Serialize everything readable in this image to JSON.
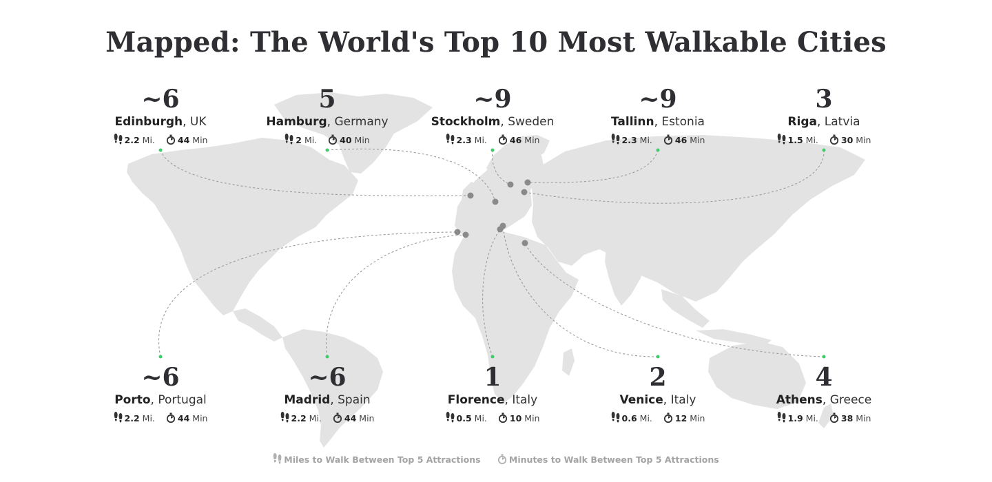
{
  "title": "Mapped: The World's Top 10 Most Walkable Cities",
  "legend": {
    "miles_label": "Miles to Walk Between Top 5 Attractions",
    "minutes_label": "Minutes to Walk Between Top 5 Attractions",
    "miles_icon": "footprints-icon",
    "minutes_icon": "stopwatch-icon"
  },
  "colors": {
    "land": "#e3e3e3",
    "dot": "#8a8a8a",
    "anchor": "#3ecf6a",
    "line": "#9a9a9a"
  },
  "cities": [
    {
      "rank": "~6",
      "name": "Edinburgh",
      "country": "UK",
      "miles": "2.2",
      "miles_unit": "Mi.",
      "minutes": "44",
      "minutes_unit": "Min"
    },
    {
      "rank": "5",
      "name": "Hamburg",
      "country": "Germany",
      "miles": "2",
      "miles_unit": "Mi.",
      "minutes": "40",
      "minutes_unit": "Min"
    },
    {
      "rank": "~9",
      "name": "Stockholm",
      "country": "Sweden",
      "miles": "2.3",
      "miles_unit": "Mi.",
      "minutes": "46",
      "minutes_unit": "Min"
    },
    {
      "rank": "~9",
      "name": "Tallinn",
      "country": "Estonia",
      "miles": "2.3",
      "miles_unit": "Mi.",
      "minutes": "46",
      "minutes_unit": "Min"
    },
    {
      "rank": "3",
      "name": "Riga",
      "country": "Latvia",
      "miles": "1.5",
      "miles_unit": "Mi.",
      "minutes": "30",
      "minutes_unit": "Min"
    },
    {
      "rank": "~6",
      "name": "Porto",
      "country": "Portugal",
      "miles": "2.2",
      "miles_unit": "Mi.",
      "minutes": "44",
      "minutes_unit": "Min"
    },
    {
      "rank": "~6",
      "name": "Madrid",
      "country": "Spain",
      "miles": "2.2",
      "miles_unit": "Mi.",
      "minutes": "44",
      "minutes_unit": "Min"
    },
    {
      "rank": "1",
      "name": "Florence",
      "country": "Italy",
      "miles": "0.5",
      "miles_unit": "Mi.",
      "minutes": "10",
      "minutes_unit": "Min"
    },
    {
      "rank": "2",
      "name": "Venice",
      "country": "Italy",
      "miles": "0.6",
      "miles_unit": "Mi.",
      "minutes": "12",
      "minutes_unit": "Min"
    },
    {
      "rank": "4",
      "name": "Athens",
      "country": "Greece",
      "miles": "1.9",
      "miles_unit": "Mi.",
      "minutes": "38",
      "minutes_unit": "Min"
    }
  ]
}
